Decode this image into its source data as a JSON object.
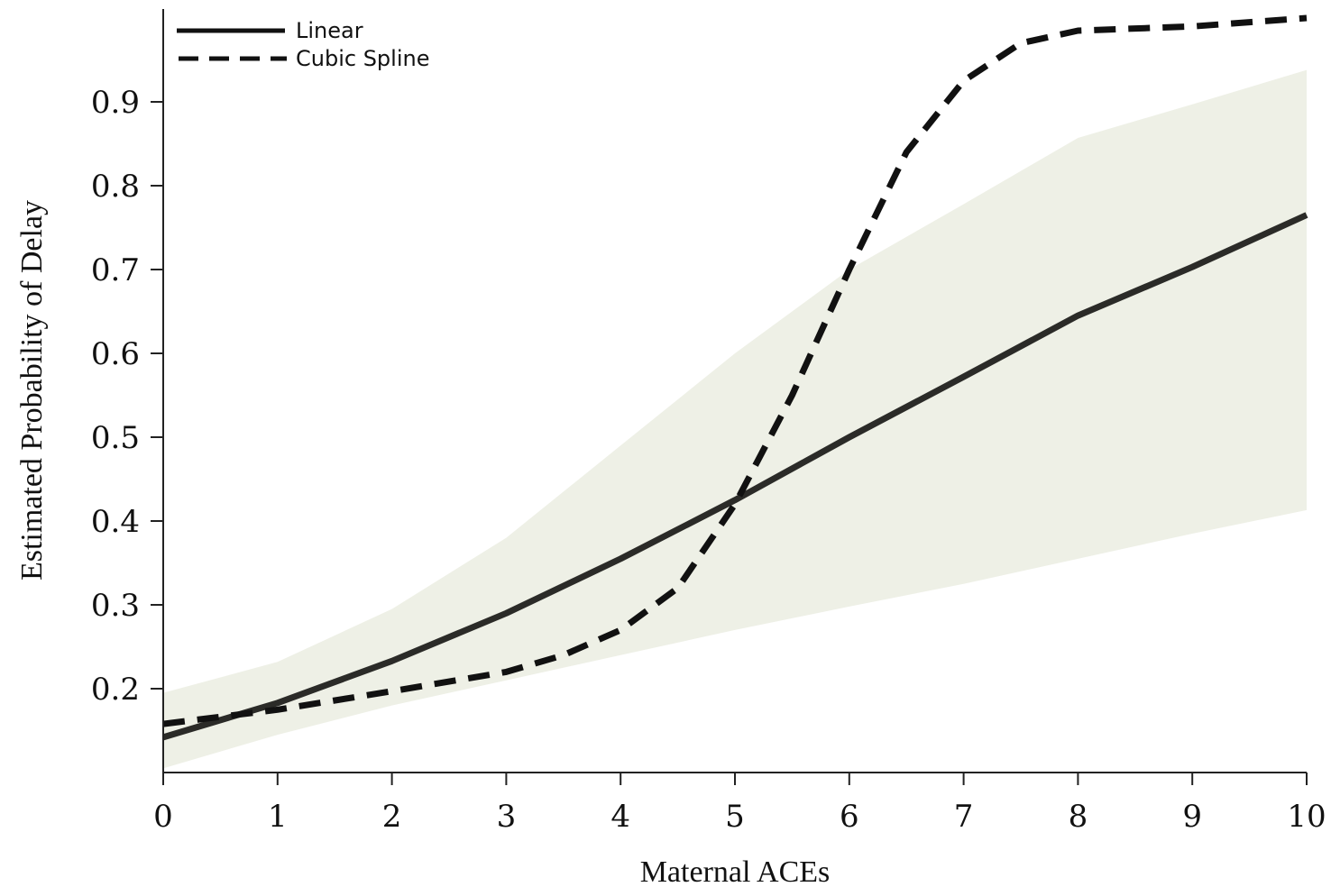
{
  "chart_data": {
    "type": "line",
    "xlabel": "Maternal ACEs",
    "ylabel": "Estimated Probability of Delay",
    "xlim": [
      0,
      10
    ],
    "ylim": [
      0.1,
      1.0
    ],
    "x_ticks": [
      0,
      1,
      2,
      3,
      4,
      5,
      6,
      7,
      8,
      9,
      10
    ],
    "y_ticks": [
      0.2,
      0.3,
      0.4,
      0.5,
      0.6,
      0.7,
      0.8,
      0.9
    ],
    "grid": false,
    "legend": {
      "position": "top-left"
    },
    "confidence_band": {
      "color": "#eef0e6",
      "x": [
        0,
        1,
        2,
        3,
        4,
        5,
        6,
        7,
        8,
        9,
        10
      ],
      "lower": [
        0.105,
        0.145,
        0.18,
        0.21,
        0.24,
        0.27,
        0.298,
        0.325,
        0.355,
        0.385,
        0.413
      ],
      "upper": [
        0.195,
        0.232,
        0.295,
        0.38,
        0.49,
        0.6,
        0.7,
        0.778,
        0.857,
        0.897,
        0.938
      ]
    },
    "series": [
      {
        "name": "Linear",
        "style": "solid",
        "color": "#2b2b28",
        "x": [
          0,
          1,
          2,
          3,
          4,
          5,
          6,
          7,
          8,
          9,
          10
        ],
        "y": [
          0.142,
          0.183,
          0.233,
          0.29,
          0.355,
          0.425,
          0.5,
          0.572,
          0.645,
          0.703,
          0.765
        ]
      },
      {
        "name": "Cubic Spline",
        "style": "dashed",
        "color": "#111111",
        "x": [
          0,
          1,
          2,
          3,
          3.5,
          4,
          4.5,
          5,
          5.5,
          6,
          6.5,
          7,
          7.5,
          8,
          9,
          10
        ],
        "y": [
          0.158,
          0.175,
          0.197,
          0.22,
          0.24,
          0.27,
          0.32,
          0.42,
          0.55,
          0.7,
          0.84,
          0.925,
          0.97,
          0.985,
          0.99,
          1.0
        ]
      }
    ]
  }
}
